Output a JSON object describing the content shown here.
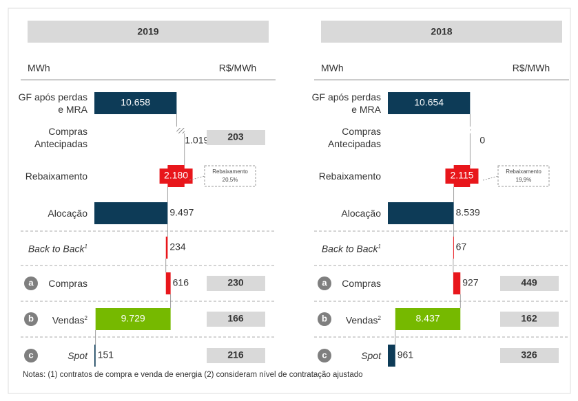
{
  "chart_data": [
    {
      "type": "waterfall",
      "title": "2019",
      "x_label": "MWh",
      "price_label": "R$/MWh",
      "categories": [
        "GF após perdas e MRA",
        "Compras Antecipadas",
        "Rebaixamento",
        "Alocação",
        "Back to Back",
        "Compras",
        "Vendas",
        "Spot"
      ],
      "kinds": [
        "total",
        "delta",
        "delta",
        "total",
        "delta",
        "delta",
        "delta",
        "total"
      ],
      "values": [
        10658,
        1019,
        -2180,
        9497,
        -234,
        616,
        -9729,
        151
      ],
      "value_labels": [
        "10.658",
        "1.019",
        "2.180",
        "9.497",
        "234",
        "616",
        "9.729",
        "151"
      ],
      "colors": [
        "#0d3b57",
        "#9a9a9a",
        "#e8161b",
        "#0d3b57",
        "#e8161b",
        "#e8161b",
        "#76b900",
        "#0d3b57"
      ],
      "prices": [
        null,
        203,
        null,
        null,
        null,
        230,
        166,
        216
      ],
      "badges": [
        null,
        null,
        null,
        null,
        null,
        "a",
        "b",
        "c"
      ],
      "superscripts": [
        null,
        null,
        null,
        null,
        "1",
        null,
        "2",
        null
      ],
      "annotation": {
        "row": 2,
        "title": "Rebaixamento",
        "text": "20,5%"
      }
    },
    {
      "type": "waterfall",
      "title": "2018",
      "x_label": "MWh",
      "price_label": "R$/MWh",
      "categories": [
        "GF após perdas e MRA",
        "Compras Antecipadas",
        "Rebaixamento",
        "Alocação",
        "Back to Back",
        "Compras",
        "Vendas",
        "Spot"
      ],
      "kinds": [
        "total",
        "delta",
        "delta",
        "total",
        "delta",
        "delta",
        "delta",
        "total"
      ],
      "values": [
        10654,
        0,
        -2115,
        8539,
        -67,
        927,
        -8437,
        961
      ],
      "value_labels": [
        "10.654",
        "0",
        "2.115",
        "8.539",
        "67",
        "927",
        "8.437",
        "961"
      ],
      "colors": [
        "#0d3b57",
        "#9a9a9a",
        "#e8161b",
        "#0d3b57",
        "#e8161b",
        "#e8161b",
        "#76b900",
        "#0d3b57"
      ],
      "prices": [
        null,
        null,
        null,
        null,
        null,
        449,
        162,
        326
      ],
      "badges": [
        null,
        null,
        null,
        null,
        null,
        "a",
        "b",
        "c"
      ],
      "superscripts": [
        null,
        null,
        null,
        null,
        "1",
        null,
        "2",
        null
      ],
      "annotation": {
        "row": 2,
        "title": "Rebaixamento",
        "text": "19,9%"
      }
    }
  ],
  "notes": "Notas: (1) contratos de compra e venda de energia (2) consideram nível de contratação ajustado"
}
